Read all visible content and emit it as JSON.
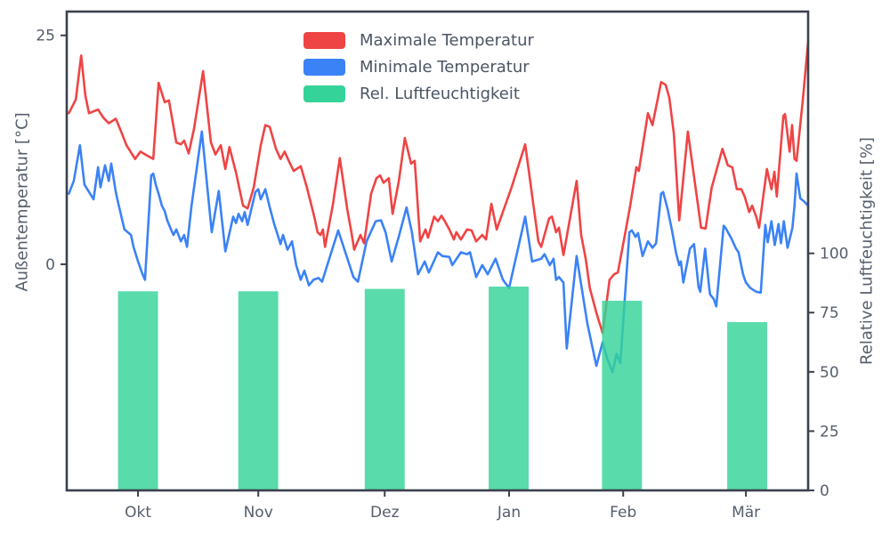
{
  "style": {
    "background": "#ffffff",
    "spine_color": "#3b414d",
    "text_color": "#555e6b",
    "accent_red": "#ef4444",
    "accent_blue": "#3b82f6",
    "accent_green": "#34d399"
  },
  "chart_data": {
    "type": "line+bar",
    "title": "",
    "x_axis": {
      "range_days": [
        0,
        180
      ],
      "tick_positions": [
        17.3,
        46.5,
        77.2,
        107.4,
        135.1,
        164.9
      ],
      "tick_labels": [
        "Okt",
        "Nov",
        "Dez",
        "Jan",
        "Feb",
        "Mär"
      ]
    },
    "y_left_axis": {
      "label": "Außentemperatur [°C]",
      "range": [
        -24.7,
        27.6
      ],
      "ticks": [
        0,
        25
      ]
    },
    "y_right_axis": {
      "label": "Relative Luftfeuchtigkeit [%]",
      "range": [
        0,
        202
      ],
      "ticks": [
        0,
        25,
        50,
        75,
        100
      ]
    },
    "series": [
      {
        "name": "Maximale Temperatur",
        "type": "line",
        "axis": "left",
        "color": "#ef4444",
        "points": [
          [
            0.5,
            16.5
          ],
          [
            2.2,
            18.0
          ],
          [
            3.5,
            22.8
          ],
          [
            4.5,
            18.5
          ],
          [
            5.4,
            16.5
          ],
          [
            7.6,
            16.9
          ],
          [
            8.9,
            16.0
          ],
          [
            10.2,
            15.4
          ],
          [
            11.9,
            15.9
          ],
          [
            13.2,
            14.5
          ],
          [
            14.5,
            13.0
          ],
          [
            16.6,
            11.5
          ],
          [
            17.9,
            12.3
          ],
          [
            19.4,
            11.9
          ],
          [
            21.0,
            11.5
          ],
          [
            22.3,
            19.8
          ],
          [
            23.8,
            17.7
          ],
          [
            24.8,
            17.9
          ],
          [
            26.6,
            13.3
          ],
          [
            27.7,
            13.1
          ],
          [
            28.5,
            13.5
          ],
          [
            29.6,
            12.1
          ],
          [
            30.9,
            14.8
          ],
          [
            33.1,
            21.1
          ],
          [
            35.0,
            13.3
          ],
          [
            36.1,
            12.0
          ],
          [
            37.4,
            13.0
          ],
          [
            38.5,
            10.4
          ],
          [
            39.5,
            12.8
          ],
          [
            41.1,
            10.0
          ],
          [
            42.8,
            6.4
          ],
          [
            43.9,
            6.1
          ],
          [
            45.4,
            8.4
          ],
          [
            47.1,
            13.0
          ],
          [
            48.2,
            15.2
          ],
          [
            49.3,
            15.0
          ],
          [
            50.8,
            12.6
          ],
          [
            51.9,
            11.5
          ],
          [
            52.9,
            12.3
          ],
          [
            54.0,
            11.2
          ],
          [
            55.1,
            10.2
          ],
          [
            56.8,
            10.7
          ],
          [
            58.3,
            8.4
          ],
          [
            60.1,
            5.2
          ],
          [
            60.9,
            3.5
          ],
          [
            61.6,
            3.2
          ],
          [
            62.2,
            3.8
          ],
          [
            62.7,
            1.9
          ],
          [
            64.6,
            6.5
          ],
          [
            66.3,
            11.6
          ],
          [
            68.1,
            6.0
          ],
          [
            69.1,
            3.5
          ],
          [
            69.8,
            1.6
          ],
          [
            71.3,
            3.2
          ],
          [
            72.2,
            2.3
          ],
          [
            73.9,
            7.7
          ],
          [
            75.2,
            9.4
          ],
          [
            76.1,
            9.7
          ],
          [
            76.9,
            8.9
          ],
          [
            78.2,
            9.4
          ],
          [
            79.1,
            5.5
          ],
          [
            80.6,
            9.0
          ],
          [
            82.1,
            13.8
          ],
          [
            83.6,
            11.0
          ],
          [
            84.5,
            11.3
          ],
          [
            85.8,
            2.5
          ],
          [
            87.1,
            3.8
          ],
          [
            87.7,
            2.9
          ],
          [
            89.2,
            5.2
          ],
          [
            90.1,
            4.7
          ],
          [
            91.0,
            5.3
          ],
          [
            91.8,
            4.7
          ],
          [
            92.9,
            3.8
          ],
          [
            94.0,
            2.7
          ],
          [
            94.6,
            3.5
          ],
          [
            95.7,
            2.7
          ],
          [
            97.2,
            3.8
          ],
          [
            98.3,
            3.7
          ],
          [
            99.4,
            2.5
          ],
          [
            100.9,
            3.2
          ],
          [
            101.8,
            2.7
          ],
          [
            103.1,
            6.6
          ],
          [
            104.4,
            3.8
          ],
          [
            108.0,
            8.4
          ],
          [
            111.3,
            13.1
          ],
          [
            114.5,
            2.5
          ],
          [
            115.2,
            1.9
          ],
          [
            117.1,
            5.0
          ],
          [
            117.8,
            5.2
          ],
          [
            118.8,
            3.5
          ],
          [
            119.5,
            4.0
          ],
          [
            120.6,
            1.0
          ],
          [
            123.8,
            9.1
          ],
          [
            124.9,
            3.2
          ],
          [
            126.0,
            0.6
          ],
          [
            127.0,
            -2.6
          ],
          [
            128.6,
            -5.3
          ],
          [
            130.1,
            -7.5
          ],
          [
            131.8,
            -1.7
          ],
          [
            132.9,
            -1.1
          ],
          [
            133.8,
            -0.9
          ],
          [
            135.5,
            3.2
          ],
          [
            136.8,
            6.4
          ],
          [
            138.3,
            10.6
          ],
          [
            138.9,
            10.2
          ],
          [
            141.1,
            16.5
          ],
          [
            142.2,
            15.2
          ],
          [
            144.3,
            19.9
          ],
          [
            145.4,
            19.6
          ],
          [
            146.3,
            18.2
          ],
          [
            147.4,
            14.3
          ],
          [
            148.7,
            4.8
          ],
          [
            150.8,
            14.5
          ],
          [
            154.0,
            4.0
          ],
          [
            155.1,
            3.9
          ],
          [
            156.6,
            8.4
          ],
          [
            159.2,
            12.6
          ],
          [
            160.5,
            10.8
          ],
          [
            161.6,
            10.6
          ],
          [
            162.7,
            8.2
          ],
          [
            163.8,
            8.2
          ],
          [
            164.6,
            7.4
          ],
          [
            165.7,
            5.7
          ],
          [
            166.4,
            6.4
          ],
          [
            167.4,
            5.2
          ],
          [
            168.1,
            4.0
          ],
          [
            170.0,
            10.4
          ],
          [
            171.1,
            8.2
          ],
          [
            171.8,
            10.1
          ],
          [
            172.4,
            7.4
          ],
          [
            174.0,
            16.2
          ],
          [
            174.4,
            16.4
          ],
          [
            175.5,
            12.3
          ],
          [
            176.1,
            15.2
          ],
          [
            176.7,
            11.5
          ],
          [
            177.2,
            11.3
          ],
          [
            178.7,
            17.9
          ],
          [
            180.0,
            24.3
          ]
        ]
      },
      {
        "name": "Minimale Temperatur",
        "type": "line",
        "axis": "left",
        "color": "#3b82f6",
        "points": [
          [
            0.5,
            7.7
          ],
          [
            1.7,
            9.1
          ],
          [
            3.2,
            13.0
          ],
          [
            4.3,
            8.7
          ],
          [
            5.4,
            7.9
          ],
          [
            6.5,
            7.1
          ],
          [
            7.6,
            10.6
          ],
          [
            8.2,
            8.4
          ],
          [
            9.3,
            10.8
          ],
          [
            10.2,
            9.1
          ],
          [
            10.8,
            11.0
          ],
          [
            11.9,
            7.9
          ],
          [
            12.5,
            6.7
          ],
          [
            14.0,
            3.8
          ],
          [
            15.6,
            3.2
          ],
          [
            16.2,
            1.9
          ],
          [
            17.3,
            0.3
          ],
          [
            18.4,
            -1.1
          ],
          [
            19.0,
            -1.7
          ],
          [
            20.5,
            9.7
          ],
          [
            21.0,
            9.9
          ],
          [
            21.6,
            8.7
          ],
          [
            22.3,
            7.7
          ],
          [
            23.1,
            6.4
          ],
          [
            23.8,
            5.8
          ],
          [
            24.4,
            4.8
          ],
          [
            25.3,
            3.8
          ],
          [
            25.9,
            3.2
          ],
          [
            26.6,
            3.8
          ],
          [
            27.7,
            2.5
          ],
          [
            28.5,
            3.2
          ],
          [
            29.2,
            1.9
          ],
          [
            30.3,
            6.4
          ],
          [
            32.8,
            14.5
          ],
          [
            35.2,
            3.5
          ],
          [
            36.9,
            8.0
          ],
          [
            38.5,
            1.4
          ],
          [
            40.4,
            5.2
          ],
          [
            41.1,
            4.5
          ],
          [
            41.7,
            5.5
          ],
          [
            42.6,
            4.7
          ],
          [
            43.2,
            5.7
          ],
          [
            43.9,
            4.3
          ],
          [
            45.8,
            7.9
          ],
          [
            46.5,
            8.2
          ],
          [
            47.1,
            7.1
          ],
          [
            48.2,
            8.2
          ],
          [
            49.3,
            6.2
          ],
          [
            50.3,
            4.5
          ],
          [
            51.9,
            2.2
          ],
          [
            52.5,
            3.2
          ],
          [
            53.6,
            1.6
          ],
          [
            54.7,
            2.5
          ],
          [
            55.7,
            -0.1
          ],
          [
            56.8,
            -1.7
          ],
          [
            57.7,
            -0.7
          ],
          [
            58.8,
            -2.3
          ],
          [
            59.9,
            -1.7
          ],
          [
            61.1,
            -1.5
          ],
          [
            62.0,
            -1.9
          ],
          [
            65.9,
            3.7
          ],
          [
            69.6,
            -1.4
          ],
          [
            70.7,
            -1.9
          ],
          [
            72.8,
            2.5
          ],
          [
            75.0,
            4.7
          ],
          [
            76.3,
            4.8
          ],
          [
            77.4,
            3.5
          ],
          [
            78.9,
            0.3
          ],
          [
            80.6,
            3.0
          ],
          [
            82.5,
            6.2
          ],
          [
            83.8,
            3.5
          ],
          [
            85.3,
            -1.1
          ],
          [
            86.9,
            0.3
          ],
          [
            87.9,
            -0.9
          ],
          [
            90.1,
            1.3
          ],
          [
            91.2,
            0.9
          ],
          [
            92.9,
            0.8
          ],
          [
            93.6,
            -0.1
          ],
          [
            95.7,
            1.3
          ],
          [
            97.2,
            1.1
          ],
          [
            97.9,
            1.3
          ],
          [
            99.4,
            -1.4
          ],
          [
            100.9,
            -0.1
          ],
          [
            102.2,
            -1.1
          ],
          [
            104.1,
            0.6
          ],
          [
            105.9,
            -1.7
          ],
          [
            107.4,
            -2.6
          ],
          [
            111.3,
            5.2
          ],
          [
            113.0,
            0.3
          ],
          [
            115.2,
            0.6
          ],
          [
            116.0,
            1.1
          ],
          [
            117.3,
            -0.1
          ],
          [
            118.2,
            0.6
          ],
          [
            118.8,
            -1.7
          ],
          [
            119.5,
            -1.4
          ],
          [
            120.6,
            -2.0
          ],
          [
            121.4,
            -9.2
          ],
          [
            123.8,
            0.9
          ],
          [
            126.4,
            -6.5
          ],
          [
            128.6,
            -11.1
          ],
          [
            130.1,
            -8.5
          ],
          [
            131.2,
            -10.3
          ],
          [
            132.5,
            -11.8
          ],
          [
            133.5,
            -9.8
          ],
          [
            134.4,
            -10.8
          ],
          [
            136.6,
            3.5
          ],
          [
            137.2,
            3.7
          ],
          [
            138.1,
            3.0
          ],
          [
            138.7,
            3.4
          ],
          [
            139.8,
            0.9
          ],
          [
            141.1,
            2.5
          ],
          [
            142.2,
            1.8
          ],
          [
            143.1,
            2.3
          ],
          [
            144.3,
            7.7
          ],
          [
            144.8,
            7.9
          ],
          [
            145.9,
            6.0
          ],
          [
            146.9,
            3.8
          ],
          [
            148.0,
            1.1
          ],
          [
            148.7,
            -0.1
          ],
          [
            149.1,
            0.3
          ],
          [
            149.7,
            -2.0
          ],
          [
            151.3,
            1.7
          ],
          [
            152.3,
            2.2
          ],
          [
            153.4,
            -2.5
          ],
          [
            153.8,
            -3.0
          ],
          [
            155.0,
            1.7
          ],
          [
            156.0,
            -2.6
          ],
          [
            156.2,
            -3.3
          ],
          [
            157.1,
            -3.8
          ],
          [
            157.7,
            -4.6
          ],
          [
            159.5,
            4.2
          ],
          [
            159.9,
            4.0
          ],
          [
            161.4,
            2.8
          ],
          [
            162.5,
            1.7
          ],
          [
            163.1,
            1.3
          ],
          [
            164.2,
            -1.1
          ],
          [
            164.9,
            -2.0
          ],
          [
            166.0,
            -2.6
          ],
          [
            167.4,
            -3.0
          ],
          [
            168.5,
            -3.1
          ],
          [
            169.6,
            4.3
          ],
          [
            170.2,
            2.4
          ],
          [
            171.1,
            4.7
          ],
          [
            171.9,
            2.1
          ],
          [
            172.8,
            4.4
          ],
          [
            173.4,
            2.3
          ],
          [
            174.1,
            4.7
          ],
          [
            175.0,
            1.8
          ],
          [
            176.2,
            4.0
          ],
          [
            176.7,
            6.4
          ],
          [
            177.2,
            9.9
          ],
          [
            178.1,
            7.2
          ],
          [
            178.9,
            6.9
          ],
          [
            180.0,
            6.4
          ]
        ]
      },
      {
        "name": "Rel. Luftfeuchtigkeit",
        "type": "bar",
        "axis": "right",
        "color": "#34d399",
        "bar_opacity": 0.82,
        "bar_width_days": 9.7,
        "points": [
          [
            17.3,
            84
          ],
          [
            46.5,
            84
          ],
          [
            77.2,
            85
          ],
          [
            107.3,
            86
          ],
          [
            134.8,
            80
          ],
          [
            165.2,
            71
          ]
        ]
      }
    ]
  }
}
